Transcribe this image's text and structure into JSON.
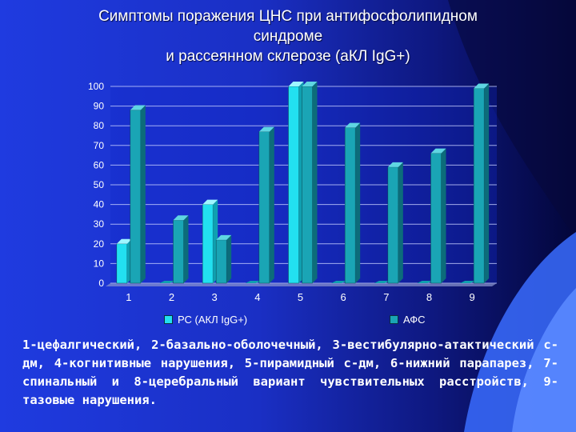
{
  "title_lines": [
    "Симптомы поражения ЦНС при антифосфолипидном",
    "синдроме",
    "и рассеянном склерозе (аКЛ IgG+)"
  ],
  "chart_data": {
    "type": "bar",
    "categories": [
      "1",
      "2",
      "3",
      "4",
      "5",
      "6",
      "7",
      "8",
      "9"
    ],
    "series": [
      {
        "name": "РС (АКЛ IgG+)",
        "values": [
          20,
          0,
          40,
          0,
          100,
          0,
          0,
          0,
          0
        ],
        "color": "#22e0f0"
      },
      {
        "name": "АФС",
        "values": [
          88,
          32,
          22,
          77,
          100,
          79,
          59,
          66,
          99
        ],
        "color": "#1aa5b5"
      }
    ],
    "ylim": [
      0,
      100
    ],
    "yticks": [
      0,
      10,
      20,
      30,
      40,
      50,
      60,
      70,
      80,
      90,
      100
    ],
    "grid": true,
    "legend_position": "bottom"
  },
  "caption": "1-цефалгический, 2-базально-оболочечный, 3-вестибулярно-атактический с-дм, 4-когнитивные нарушения, 5-пирамидный с-дм, 6-нижний парапарез, 7-спинальный и 8-церебральный вариант чувствительных расстройств, 9-тазовые нарушения."
}
